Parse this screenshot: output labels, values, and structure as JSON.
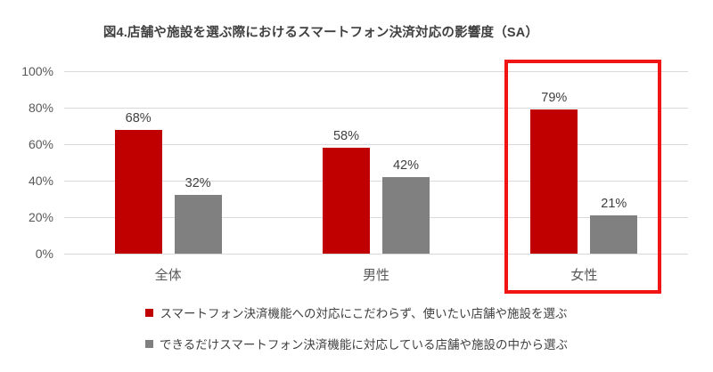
{
  "title": "図4.店舗や施設を選ぶ際におけるスマートフォン決済対応の影響度（SA）",
  "colors": {
    "series1": "#c00000",
    "series2": "#808080",
    "highlight_box": "#f01414",
    "gridline": "#d9d9d9",
    "title_text": "#404040",
    "axis_text": "#595959"
  },
  "chart_data": {
    "type": "bar",
    "title": "図4.店舗や施設を選ぶ際におけるスマートフォン決済対応の影響度（SA）",
    "categories": [
      "全体",
      "男性",
      "女性"
    ],
    "series": [
      {
        "name": "スマートフォン決済機能への対応にこだわらず、使いたい店舗や施設を選ぶ",
        "color": "#c00000",
        "values": [
          68,
          58,
          79
        ]
      },
      {
        "name": "できるだけスマートフォン決済機能に対応している店舗や施設の中から選ぶ",
        "color": "#808080",
        "values": [
          32,
          42,
          21
        ]
      }
    ],
    "value_label_suffix": "%",
    "y_ticks": [
      "100%",
      "80%",
      "60%",
      "40%",
      "20%",
      "0%"
    ],
    "ylim": [
      0,
      100
    ],
    "grid": true,
    "legend_position": "bottom",
    "highlighted_category": "女性"
  }
}
